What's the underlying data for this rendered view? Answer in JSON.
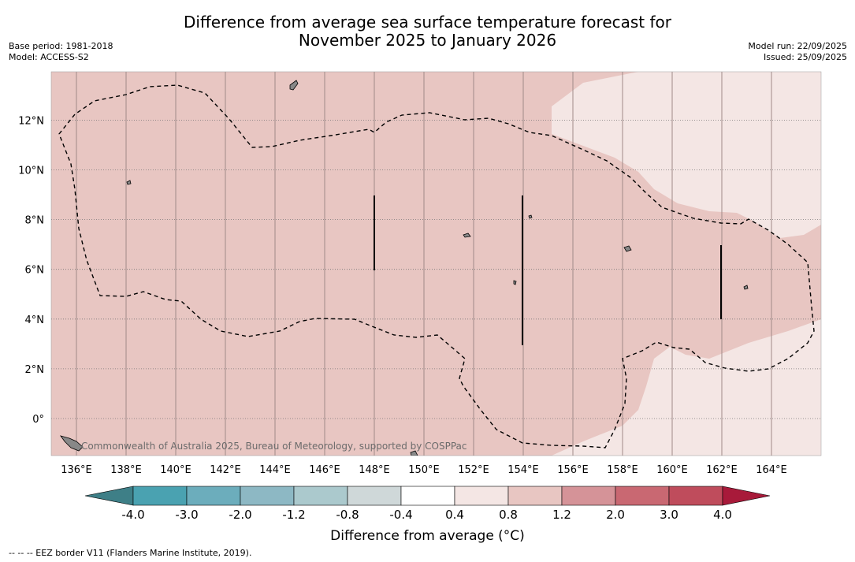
{
  "title": {
    "line1": "Difference from average sea surface temperature forecast for",
    "line2": "November 2025 to January 2026"
  },
  "meta_left": {
    "base_period": "Base period: 1981-2018",
    "model": "Model: ACCESS-S2"
  },
  "meta_right": {
    "model_run": "Model run: 22/09/2025",
    "issued": "Issued: 25/09/2025"
  },
  "map": {
    "lon_labels": [
      "136°E",
      "138°E",
      "140°E",
      "142°E",
      "144°E",
      "146°E",
      "148°E",
      "150°E",
      "152°E",
      "154°E",
      "156°E",
      "158°E",
      "160°E",
      "162°E",
      "164°E"
    ],
    "lon_values": [
      136,
      138,
      140,
      142,
      144,
      146,
      148,
      150,
      152,
      154,
      156,
      158,
      160,
      162,
      164
    ],
    "lat_labels": [
      "12°N",
      "10°N",
      "8°N",
      "6°N",
      "4°N",
      "2°N",
      "0°"
    ],
    "lat_values": [
      12,
      10,
      8,
      6,
      4,
      2,
      0
    ],
    "credit": "Commonwealth of Australia 2025, Bureau of Meteorology, supported by COSPPac",
    "colors": {
      "anomaly_0_8_to_1_2": "#e8c6c2",
      "anomaly_0_4_to_0_8": "#f4e6e4"
    }
  },
  "colorbar": {
    "labels": [
      "-4.0",
      "-3.0",
      "-2.0",
      "-1.2",
      "-0.8",
      "-0.4",
      "0.4",
      "0.8",
      "1.2",
      "2.0",
      "3.0",
      "4.0"
    ],
    "colors": [
      "#3e7f87",
      "#4aa2b1",
      "#6cadbc",
      "#8db8c4",
      "#abc9cd",
      "#cfd8d9",
      "#ffffff",
      "#f4e6e4",
      "#e8c6c2",
      "#d59398",
      "#c96872",
      "#bf4c5c",
      "#a81a3a"
    ],
    "title": "Difference from average (°C)"
  },
  "footnote": "--  --  -- EEZ border V11 (Flanders Marine Institute, 2019)."
}
